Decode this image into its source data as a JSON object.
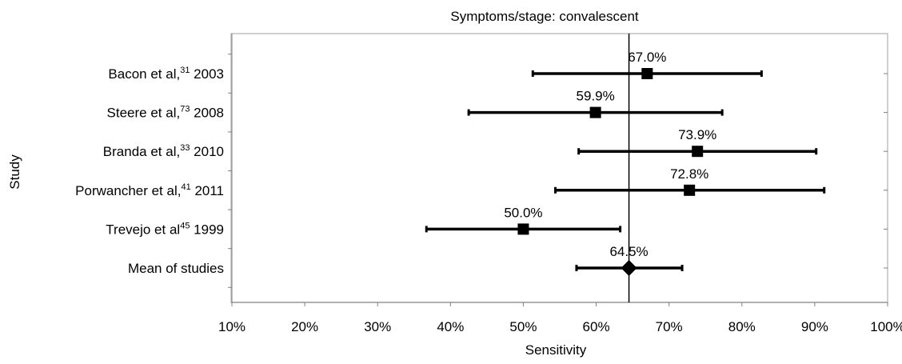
{
  "chart_data": {
    "type": "forest",
    "title": "Symptoms/stage: convalescent",
    "xlabel": "Sensitivity",
    "ylabel": "Study",
    "xlim": [
      10,
      100
    ],
    "xticks": [
      10,
      20,
      30,
      40,
      50,
      60,
      70,
      80,
      90,
      100
    ],
    "xtick_labels": [
      "10%",
      "20%",
      "30%",
      "40%",
      "50%",
      "60%",
      "70%",
      "80%",
      "90%",
      "100%"
    ],
    "reference_line": 64.5,
    "studies": [
      {
        "name": "Bacon et al,",
        "ref": "31",
        "year": "2003",
        "estimate": 67.0,
        "ci": [
          51.3,
          82.7
        ],
        "label": "67.0%",
        "marker": "square"
      },
      {
        "name": "Steere et al,",
        "ref": "73",
        "year": "2008",
        "estimate": 59.9,
        "ci": [
          42.5,
          77.3
        ],
        "label": "59.9%",
        "marker": "square"
      },
      {
        "name": "Branda et al,",
        "ref": "33",
        "year": "2010",
        "estimate": 73.9,
        "ci": [
          57.6,
          90.2
        ],
        "label": "73.9%",
        "marker": "square"
      },
      {
        "name": "Porwancher et al,",
        "ref": "41",
        "year": "2011",
        "estimate": 72.8,
        "ci": [
          54.4,
          91.3
        ],
        "label": "72.8%",
        "marker": "square"
      },
      {
        "name": "Trevejo et al",
        "ref": "45",
        "year": "1999",
        "estimate": 50.0,
        "ci": [
          36.7,
          63.3
        ],
        "label": "50.0%",
        "marker": "square"
      },
      {
        "name": "Mean of studies",
        "ref": "",
        "year": "",
        "estimate": 64.5,
        "ci": [
          57.3,
          71.8
        ],
        "label": "64.5%",
        "marker": "diamond"
      }
    ],
    "colors": {
      "line": "#000000",
      "frame": "#c0c0c0",
      "background": "#ffffff"
    },
    "grid": false
  }
}
